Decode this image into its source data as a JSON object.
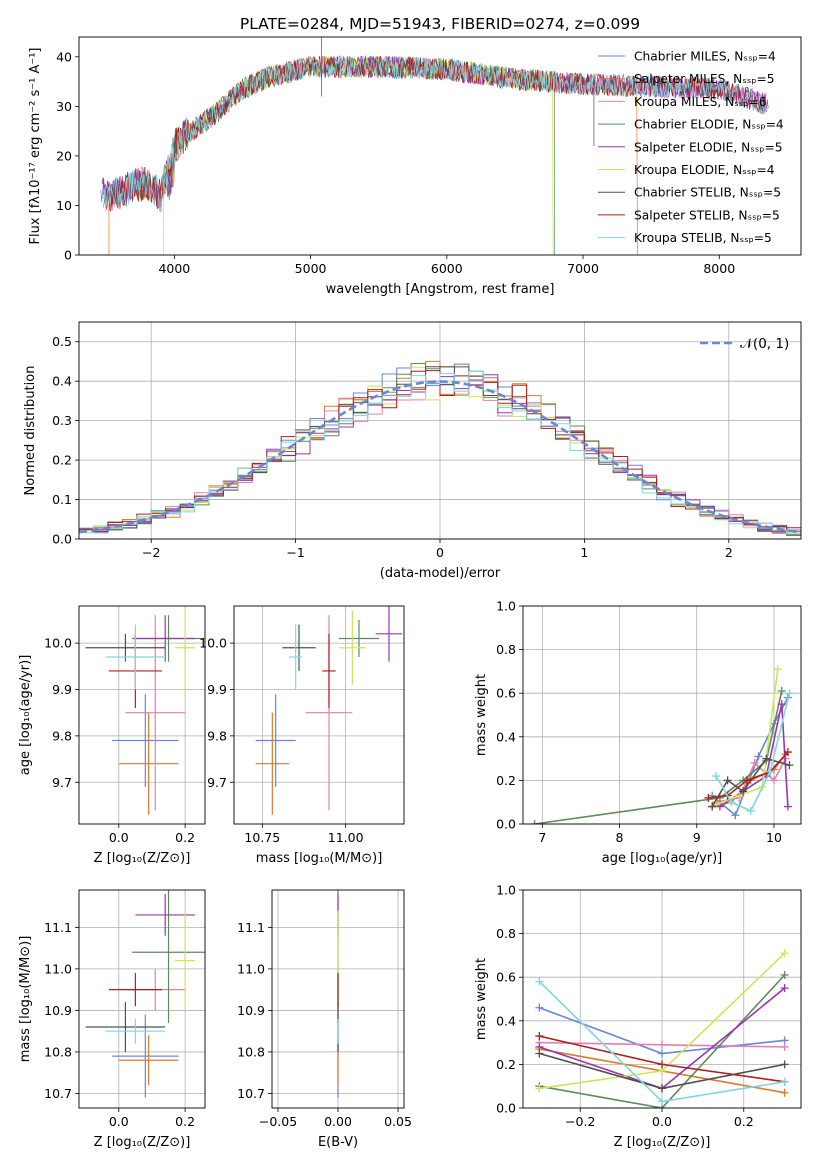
{
  "figure_title": "PLATE=0284, MJD=51943, FIBERID=0274, z=0.099",
  "colors": [
    "#6688d6",
    "#e07a2a",
    "#e67fb0",
    "#5f8a5f",
    "#9b35b0",
    "#cde557",
    "#505050",
    "#b01f1f",
    "#7fd7e0"
  ],
  "chart_data": [
    {
      "id": "spectrum",
      "type": "line",
      "title": "PLATE=0284, MJD=51943, FIBERID=0274, z=0.099",
      "xlabel": "wavelength [Angstrom, rest frame]",
      "ylabel": "Flux [fλ10⁻¹⁷ erg cm⁻² s⁻¹ A⁻¹]",
      "xlim": [
        3300,
        8600
      ],
      "ylim": [
        0,
        44
      ],
      "xticks": [
        4000,
        5000,
        6000,
        7000,
        8000
      ],
      "yticks": [
        0,
        10,
        20,
        30,
        40
      ],
      "grid": false,
      "legend_position": "upper-right",
      "continuum": {
        "x": [
          3450,
          3600,
          3700,
          3800,
          3900,
          4000,
          4100,
          4200,
          4300,
          4400,
          4500,
          4700,
          5000,
          5500,
          6000,
          6500,
          7000,
          7500,
          8000,
          8400
        ],
        "y": [
          12,
          12.5,
          14,
          14.5,
          12,
          22,
          24.5,
          26.5,
          28.5,
          31,
          33.5,
          36,
          38,
          38,
          37.5,
          35.5,
          34.5,
          34,
          33.5,
          30
        ]
      },
      "series": [
        {
          "name": "Chabrier MILES, N_SSP=4"
        },
        {
          "name": "Salpeter MILES, N_SSP=5"
        },
        {
          "name": "Kroupa MILES, N_SSP=6"
        },
        {
          "name": "Chabrier ELODIE, N_SSP=4"
        },
        {
          "name": "Salpeter ELODIE, N_SSP=5"
        },
        {
          "name": "Kroupa ELODIE, N_SSP=4"
        },
        {
          "name": "Chabrier STELIB, N_SSP=5"
        },
        {
          "name": "Salpeter STELIB, N_SSP=5"
        },
        {
          "name": "Kroupa STELIB, N_SSP=5"
        }
      ]
    },
    {
      "id": "residuals",
      "type": "histogram",
      "xlabel": "(data-model)/error",
      "ylabel": "Normed distribution",
      "xlim": [
        -2.5,
        2.5
      ],
      "ylim": [
        0,
        0.55
      ],
      "xticks": [
        -2,
        -1,
        0,
        1,
        2
      ],
      "yticks": [
        0.0,
        0.1,
        0.2,
        0.3,
        0.4,
        0.5
      ],
      "grid": true,
      "legend_position": "upper-right",
      "reference_curve": {
        "name": "𝒩(0, 1)",
        "mean": 0,
        "sigma": 1
      },
      "bin_width": 0.1
    },
    {
      "id": "age_vs_Z",
      "type": "errorbar",
      "xlabel": "Z [log₁₀(Z/Z⊙)]",
      "ylabel": "age  [log₁₀(age/yr)]",
      "xlim": [
        -0.12,
        0.26
      ],
      "ylim": [
        9.61,
        10.08
      ],
      "xticks": [
        0.0,
        0.2
      ],
      "yticks": [
        9.7,
        9.8,
        9.9,
        10.0
      ],
      "grid": true,
      "points": [
        {
          "x": 0.08,
          "xerr": 0.1,
          "y": 9.79,
          "yerr": 0.1
        },
        {
          "x": 0.09,
          "xerr": 0.09,
          "y": 9.74,
          "yerr": 0.11
        },
        {
          "x": 0.11,
          "xerr": 0.09,
          "y": 9.85,
          "yerr": 0.21
        },
        {
          "x": 0.15,
          "xerr": 0.11,
          "y": 10.01,
          "yerr": 0.05
        },
        {
          "x": 0.14,
          "xerr": 0.09,
          "y": 10.01,
          "yerr": 0.05
        },
        {
          "x": 0.2,
          "xerr": 0.03,
          "y": 9.99,
          "yerr": 0.1
        },
        {
          "x": 0.02,
          "xerr": 0.12,
          "y": 9.99,
          "yerr": 0.03
        },
        {
          "x": 0.05,
          "xerr": 0.08,
          "y": 9.94,
          "yerr": 0.08
        },
        {
          "x": 0.05,
          "xerr": 0.09,
          "y": 9.97,
          "yerr": 0.07
        }
      ]
    },
    {
      "id": "age_vs_mass",
      "type": "errorbar",
      "xlabel": "mass [log₁₀(M/M⊙)]",
      "ylabel": "",
      "xlim": [
        10.665,
        11.175
      ],
      "ylim": [
        9.61,
        10.08
      ],
      "xticks": [
        10.75,
        11.0
      ],
      "yticks": [
        9.7,
        9.8,
        9.9,
        10.0
      ],
      "grid": true,
      "points": [
        {
          "x": 10.79,
          "xerr": 0.06,
          "y": 9.79,
          "yerr": 0.1
        },
        {
          "x": 10.78,
          "xerr": 0.05,
          "y": 9.74,
          "yerr": 0.11
        },
        {
          "x": 10.95,
          "xerr": 0.07,
          "y": 9.85,
          "yerr": 0.21
        },
        {
          "x": 11.04,
          "xerr": 0.06,
          "y": 10.01,
          "yerr": 0.04
        },
        {
          "x": 11.13,
          "xerr": 0.04,
          "y": 10.02,
          "yerr": 0.06
        },
        {
          "x": 11.02,
          "xerr": 0.04,
          "y": 9.99,
          "yerr": 0.08
        },
        {
          "x": 10.86,
          "xerr": 0.05,
          "y": 9.99,
          "yerr": 0.05
        },
        {
          "x": 10.95,
          "xerr": 0.02,
          "y": 9.94,
          "yerr": 0.08
        },
        {
          "x": 10.85,
          "xerr": 0.02,
          "y": 9.97,
          "yerr": 0.07
        }
      ]
    },
    {
      "id": "weight_vs_age",
      "type": "line",
      "xlabel": "age  [log₁₀(age/yr)]",
      "ylabel": "mass weight",
      "xlim": [
        6.75,
        10.35
      ],
      "ylim": [
        0,
        1
      ],
      "xticks": [
        7,
        8,
        9,
        10
      ],
      "yticks": [
        0.0,
        0.2,
        0.4,
        0.6,
        0.8,
        1.0
      ],
      "grid": true,
      "series": [
        {
          "x": [
            9.2,
            9.5,
            9.8,
            10.0,
            10.18
          ],
          "y": [
            0.13,
            0.04,
            0.31,
            0.46,
            0.58
          ]
        },
        {
          "x": [
            9.2,
            9.45,
            9.7,
            10.0,
            10.15
          ],
          "y": [
            0.08,
            0.1,
            0.2,
            0.25,
            0.32
          ]
        },
        {
          "x": [
            9.25,
            9.55,
            9.75,
            10.0,
            10.15
          ],
          "y": [
            0.1,
            0.12,
            0.28,
            0.2,
            0.3
          ]
        },
        {
          "x": [
            6.9,
            9.3,
            9.6,
            9.9,
            10.1
          ],
          "y": [
            0.0,
            0.12,
            0.2,
            0.29,
            0.61
          ]
        },
        {
          "x": [
            9.3,
            9.6,
            9.9,
            10.1,
            10.18
          ],
          "y": [
            0.08,
            0.15,
            0.22,
            0.55,
            0.08
          ]
        },
        {
          "x": [
            9.25,
            9.55,
            9.85,
            10.05
          ],
          "y": [
            0.09,
            0.13,
            0.17,
            0.71
          ]
        },
        {
          "x": [
            9.2,
            9.4,
            9.6,
            9.9,
            10.2
          ],
          "y": [
            0.08,
            0.2,
            0.15,
            0.3,
            0.27
          ]
        },
        {
          "x": [
            9.15,
            9.4,
            9.65,
            9.95,
            10.18
          ],
          "y": [
            0.12,
            0.13,
            0.2,
            0.24,
            0.33
          ]
        },
        {
          "x": [
            9.25,
            9.45,
            9.7,
            9.95,
            10.2
          ],
          "y": [
            0.22,
            0.1,
            0.06,
            0.24,
            0.6
          ]
        }
      ]
    },
    {
      "id": "mass_vs_Z",
      "type": "errorbar",
      "xlabel": "Z [log₁₀(Z/Z⊙)]",
      "ylabel": "mass [log₁₀(M/M⊙)]",
      "xlim": [
        -0.12,
        0.26
      ],
      "ylim": [
        10.665,
        11.19
      ],
      "xticks": [
        0.0,
        0.2
      ],
      "yticks": [
        10.7,
        10.8,
        10.9,
        11.0,
        11.1
      ],
      "grid": true,
      "points": [
        {
          "x": 0.08,
          "xerr": 0.1,
          "y": 10.79,
          "yerr": 0.1
        },
        {
          "x": 0.09,
          "xerr": 0.09,
          "y": 10.78,
          "yerr": 0.06
        },
        {
          "x": 0.11,
          "xerr": 0.09,
          "y": 10.95,
          "yerr": 0.05
        },
        {
          "x": 0.15,
          "xerr": 0.11,
          "y": 11.04,
          "yerr": 0.17
        },
        {
          "x": 0.14,
          "xerr": 0.09,
          "y": 11.13,
          "yerr": 0.05
        },
        {
          "x": 0.2,
          "xerr": 0.03,
          "y": 11.02,
          "yerr": 0.12
        },
        {
          "x": 0.02,
          "xerr": 0.12,
          "y": 10.86,
          "yerr": 0.06
        },
        {
          "x": 0.05,
          "xerr": 0.08,
          "y": 10.95,
          "yerr": 0.04
        },
        {
          "x": 0.05,
          "xerr": 0.09,
          "y": 10.85,
          "yerr": 0.03
        }
      ]
    },
    {
      "id": "mass_vs_EBV",
      "type": "errorbar",
      "xlabel": "E(B-V)",
      "ylabel": "",
      "xlim": [
        -0.055,
        0.055
      ],
      "ylim": [
        10.665,
        11.19
      ],
      "xticks": [
        -0.05,
        0.0,
        0.05
      ],
      "yticks": [
        10.7,
        10.8,
        10.9,
        11.0,
        11.1
      ],
      "grid": true,
      "points": [
        {
          "x": 0.0,
          "y": 10.79,
          "yerr": 0.1
        },
        {
          "x": 0.0,
          "y": 10.78,
          "yerr": 0.06
        },
        {
          "x": 0.0,
          "y": 10.95,
          "yerr": 0.05
        },
        {
          "x": 0.0,
          "y": 11.04,
          "yerr": 0.17
        },
        {
          "x": 0.0,
          "y": 11.13,
          "yerr": 0.05
        },
        {
          "x": 0.0,
          "y": 11.02,
          "yerr": 0.12
        },
        {
          "x": 0.0,
          "y": 10.86,
          "yerr": 0.06
        },
        {
          "x": 0.0,
          "y": 10.95,
          "yerr": 0.04
        },
        {
          "x": 0.0,
          "y": 10.85,
          "yerr": 0.03
        }
      ]
    },
    {
      "id": "weight_vs_Z",
      "type": "line",
      "xlabel": "Z [log₁₀(Z/Z⊙)]",
      "ylabel": "mass weight",
      "xlim": [
        -0.34,
        0.34
      ],
      "ylim": [
        0,
        1
      ],
      "xticks": [
        -0.2,
        0.0,
        0.2
      ],
      "yticks": [
        0.0,
        0.2,
        0.4,
        0.6,
        0.8,
        1.0
      ],
      "grid": true,
      "series": [
        {
          "x": [
            -0.3,
            0.0,
            0.3
          ],
          "y": [
            0.46,
            0.25,
            0.31
          ]
        },
        {
          "x": [
            -0.3,
            0.0,
            0.3
          ],
          "y": [
            0.27,
            0.17,
            0.07
          ]
        },
        {
          "x": [
            -0.3,
            0.0,
            0.3
          ],
          "y": [
            0.3,
            0.29,
            0.28
          ]
        },
        {
          "x": [
            -0.3,
            0.0,
            0.3
          ],
          "y": [
            0.1,
            0.0,
            0.61
          ]
        },
        {
          "x": [
            -0.3,
            0.0,
            0.3
          ],
          "y": [
            0.28,
            0.09,
            0.55
          ]
        },
        {
          "x": [
            -0.3,
            0.0,
            0.3
          ],
          "y": [
            0.09,
            0.17,
            0.71
          ]
        },
        {
          "x": [
            -0.3,
            0.0,
            0.3
          ],
          "y": [
            0.25,
            0.09,
            0.2
          ]
        },
        {
          "x": [
            -0.3,
            0.0,
            0.3
          ],
          "y": [
            0.33,
            0.2,
            0.12
          ]
        },
        {
          "x": [
            -0.3,
            0.0,
            0.3
          ],
          "y": [
            0.58,
            0.03,
            0.12
          ]
        }
      ]
    }
  ]
}
